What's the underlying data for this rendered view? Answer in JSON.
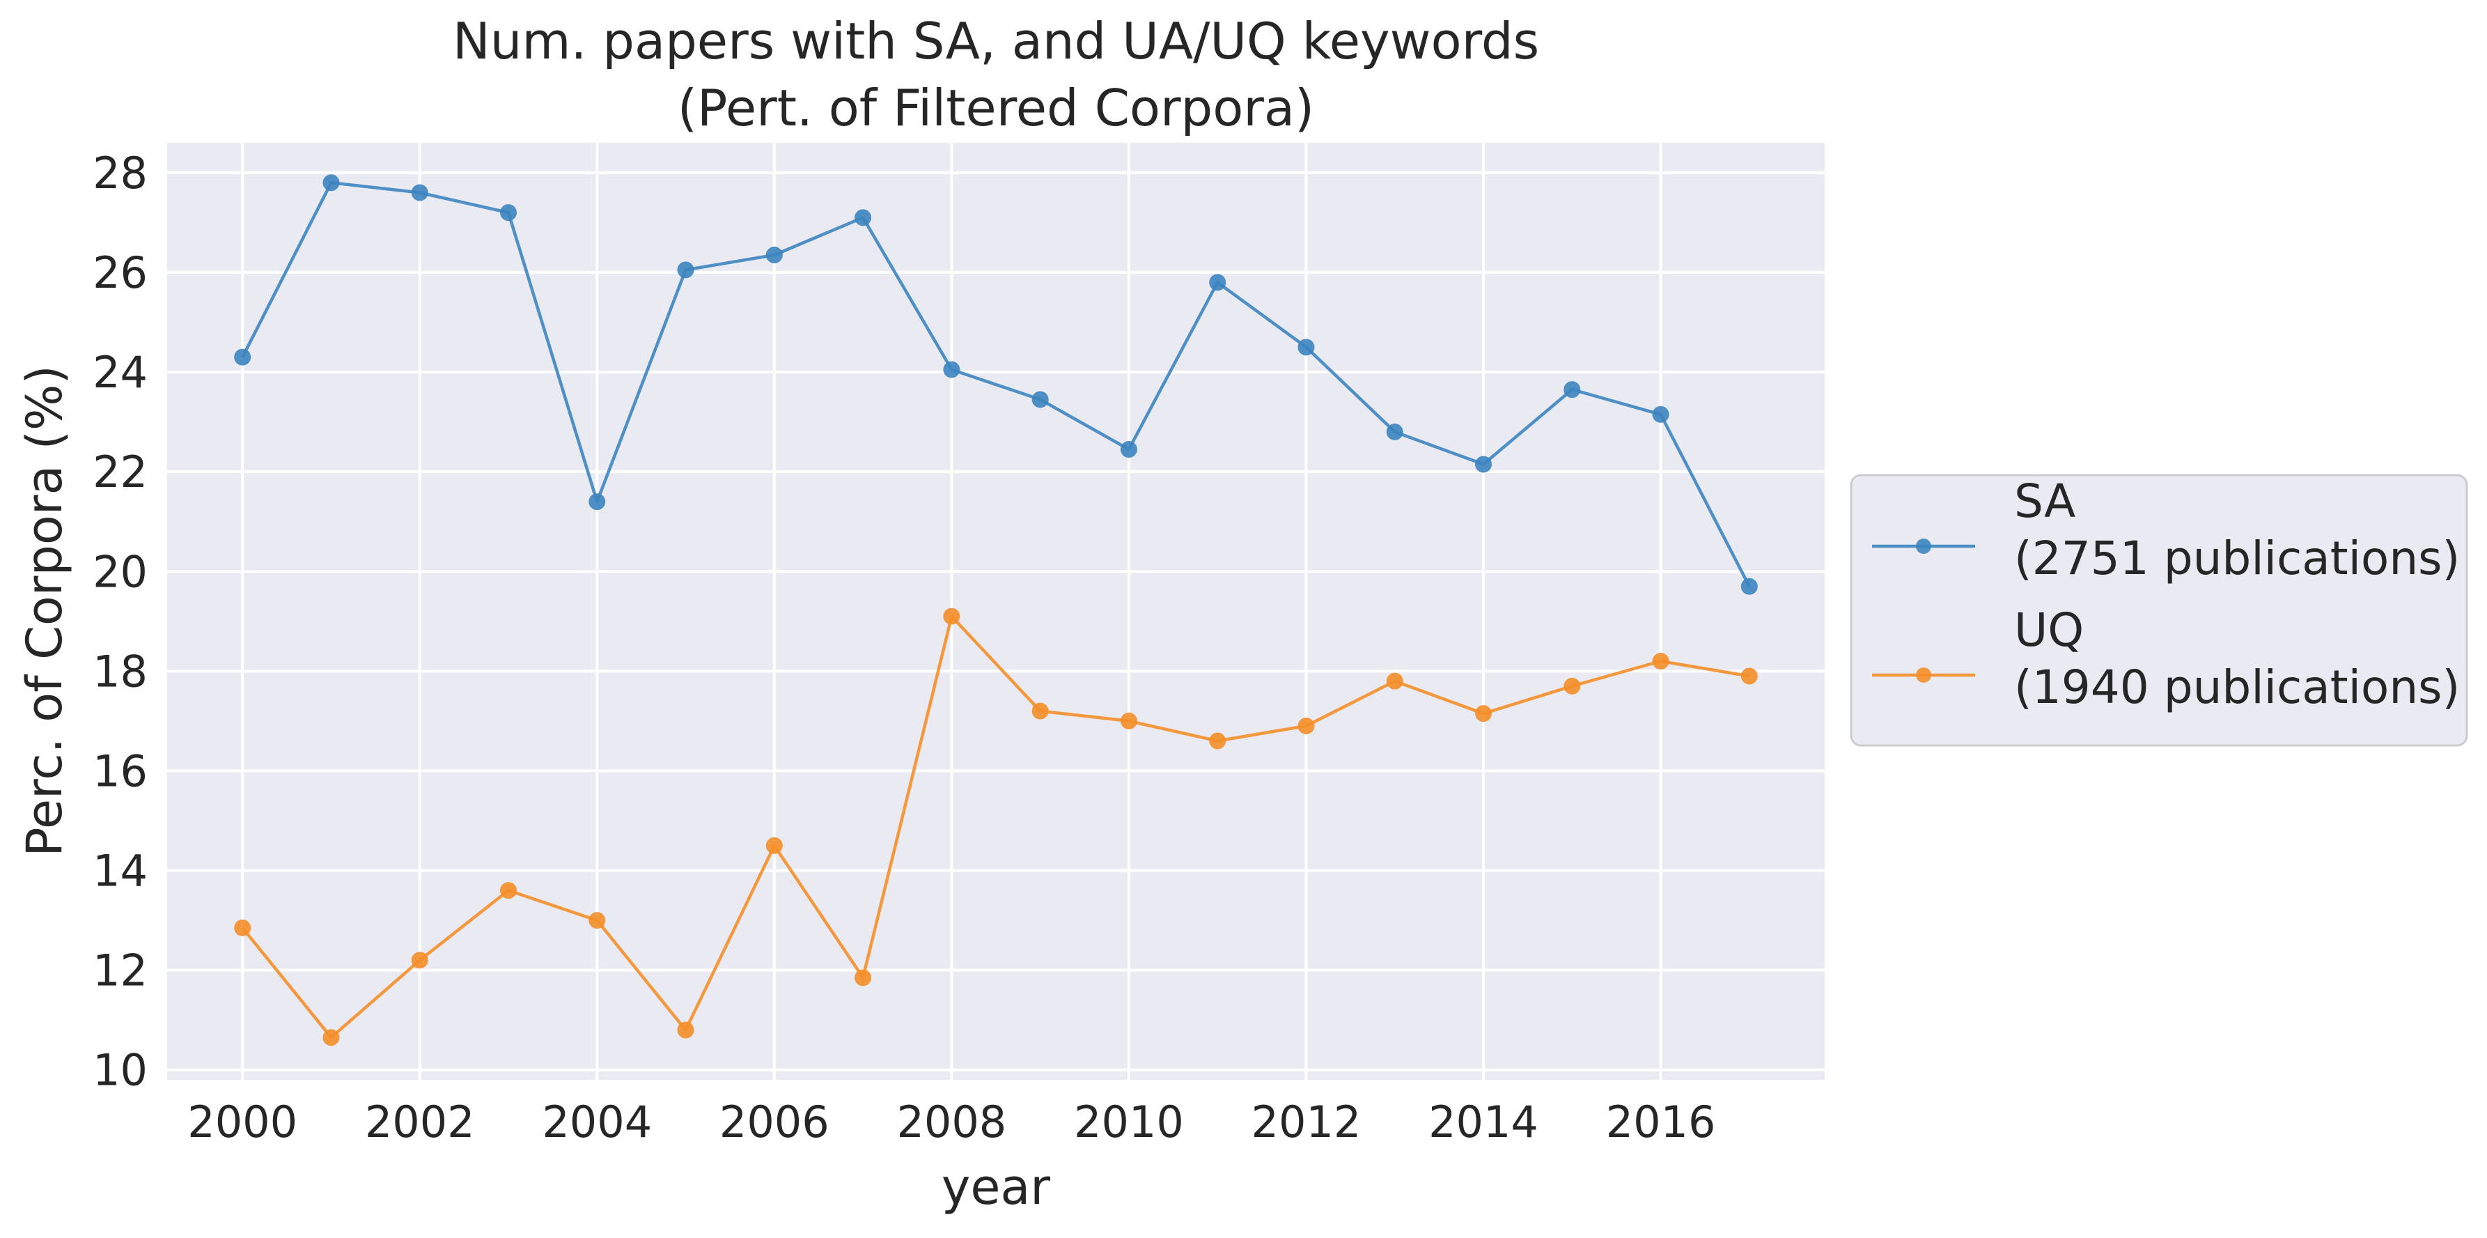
{
  "chart_data": {
    "type": "line",
    "title_line1": "Num. papers with SA, and UA/UQ keywords",
    "title_line2": "(Pert. of Filtered Corpora)",
    "xlabel": "year",
    "ylabel": "Perc. of Corpora (%)",
    "xlim": [
      1999.15,
      2017.85
    ],
    "ylim": [
      9.8,
      28.6
    ],
    "x_ticks": [
      2000,
      2002,
      2004,
      2006,
      2008,
      2010,
      2012,
      2014,
      2016
    ],
    "y_ticks": [
      10,
      12,
      14,
      16,
      18,
      20,
      22,
      24,
      26,
      28
    ],
    "grid": true,
    "legend_placement": "center-right outside plot",
    "x": [
      2000,
      2001,
      2002,
      2003,
      2004,
      2005,
      2006,
      2007,
      2008,
      2009,
      2010,
      2011,
      2012,
      2013,
      2014,
      2015,
      2016,
      2017
    ],
    "series": [
      {
        "name": "SA",
        "legend_line1": "SA",
        "legend_line2": "(2751 publications)",
        "color": "#3d85c0",
        "values": [
          24.3,
          27.8,
          27.6,
          27.2,
          21.4,
          26.05,
          26.35,
          27.1,
          24.05,
          23.45,
          22.45,
          25.8,
          24.5,
          22.8,
          22.15,
          23.65,
          23.15,
          19.7
        ]
      },
      {
        "name": "UQ",
        "legend_line1": "UQ",
        "legend_line2": "(1940 publications)",
        "color": "#f58f2a",
        "values": [
          12.85,
          10.65,
          12.2,
          13.6,
          13.0,
          10.8,
          14.5,
          11.85,
          19.1,
          17.2,
          17.0,
          16.6,
          16.9,
          17.8,
          17.15,
          17.7,
          18.2,
          17.9
        ]
      }
    ]
  }
}
